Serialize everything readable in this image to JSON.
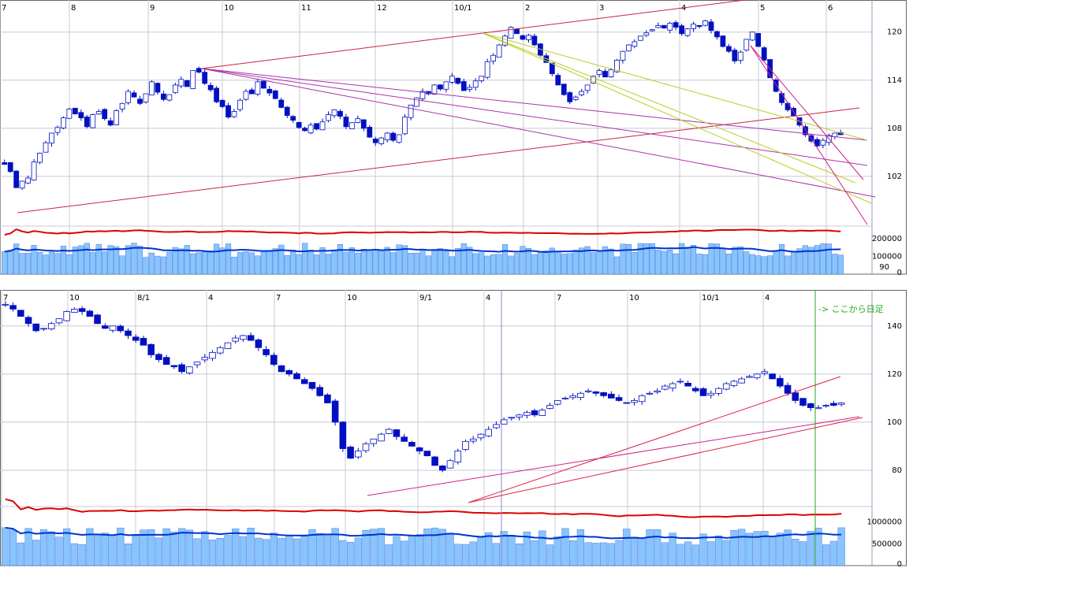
{
  "chart_data": [
    {
      "type": "candlestick",
      "name": "daily",
      "x_labels": [
        "7",
        "8",
        "9",
        "10",
        "11",
        "12",
        "10/1",
        "2",
        "3",
        "4",
        "5",
        "6"
      ],
      "price_ticks": [
        120,
        114,
        108,
        102
      ],
      "volume_ticks": [
        "200000",
        "100000",
        "0"
      ],
      "volume_extra_tick": "90",
      "price_range": [
        96,
        124
      ],
      "volume_range": [
        0,
        270000
      ],
      "colors": {
        "up": "#ffffff",
        "down": "#0010c0",
        "volume": "#88c4ff",
        "volume_line": "#0033cc",
        "volume_line2": "#dd0000",
        "grid": "#c8c8d8"
      },
      "closes": [
        103.5,
        102.6,
        100.6,
        101.4,
        101.8,
        103.8,
        104.9,
        106.2,
        107.4,
        108.1,
        109.3,
        110.4,
        109.8,
        109.3,
        108.2,
        109.7,
        110.1,
        109.2,
        108.4,
        110.2,
        111.1,
        112.6,
        111.9,
        111.1,
        112.3,
        113.8,
        112.5,
        111.6,
        112.2,
        113.4,
        114.1,
        113.2,
        115.2,
        115.0,
        113.6,
        112.8,
        111.3,
        110.7,
        109.4,
        110.1,
        111.5,
        112.6,
        112.3,
        113.8,
        113.0,
        112.4,
        111.7,
        110.6,
        109.6,
        109.0,
        108.1,
        107.7,
        108.4,
        107.9,
        108.8,
        109.7,
        110.3,
        109.5,
        108.2,
        108.7,
        109.2,
        108.0,
        106.9,
        106.2,
        106.8,
        107.4,
        106.5,
        107.2,
        109.4,
        110.9,
        111.8,
        112.6,
        112.3,
        113.4,
        112.9,
        113.8,
        114.5,
        113.6,
        112.7,
        113.1,
        113.9,
        114.5,
        116.3,
        117.1,
        118.4,
        119.5,
        120.6,
        119.8,
        119.1,
        119.6,
        118.4,
        117.1,
        116.2,
        114.8,
        113.4,
        112.2,
        111.3,
        111.9,
        112.6,
        113.4,
        114.5,
        115.2,
        114.4,
        115.3,
        116.5,
        117.6,
        118.4,
        118.8,
        119.5,
        119.9,
        120.3,
        120.8,
        120.5,
        121.1,
        120.6,
        119.8,
        120.4,
        121.0,
        120.7,
        121.4,
        120.2,
        119.4,
        118.2,
        117.6,
        116.4,
        117.5,
        119.1,
        120.0,
        118.2,
        116.5,
        114.3,
        112.6,
        111.2,
        110.3,
        109.6,
        108.4,
        107.2,
        106.4,
        105.8,
        106.5,
        107.1,
        107.4,
        107.2
      ]
    },
    {
      "type": "candlestick",
      "name": "weekly",
      "x_labels": [
        "7",
        "10",
        "8/1",
        "4",
        "7",
        "10",
        "9/1",
        "4",
        "7",
        "10",
        "10/1",
        "4"
      ],
      "price_ticks": [
        140,
        120,
        100,
        80
      ],
      "volume_ticks": [
        "1000000",
        "500000",
        "0"
      ],
      "price_range": [
        60,
        155
      ],
      "volume_range": [
        0,
        1200000
      ],
      "annotation": "-> ここから日足",
      "colors": {
        "up": "#ffffff",
        "down": "#0010c0",
        "volume": "#88c4ff",
        "volume_line": "#0033cc",
        "volume_line2": "#dd0000",
        "grid": "#c8c8d8",
        "marker": "#22aa22"
      },
      "closes": [
        149,
        147,
        144,
        141,
        138,
        139,
        141,
        143,
        146,
        147,
        146,
        144,
        141,
        139,
        140,
        138,
        136,
        134,
        132,
        128,
        126,
        124,
        123,
        121,
        123,
        125,
        127,
        129,
        131,
        133,
        135,
        136,
        134,
        131,
        128,
        124,
        121,
        120,
        118,
        116,
        114,
        111,
        108,
        100,
        89,
        85,
        88,
        91,
        93,
        95,
        97,
        94,
        92,
        90,
        88,
        86,
        82,
        80,
        84,
        88,
        92,
        93,
        95,
        97,
        99,
        101,
        102,
        103,
        104,
        103,
        105,
        107,
        109,
        110,
        111,
        112,
        113,
        112,
        111,
        110,
        109,
        108,
        109,
        111,
        112,
        113,
        115,
        116,
        117,
        115,
        113,
        111,
        112,
        114,
        116,
        117,
        118,
        119,
        120,
        121,
        118,
        115,
        112,
        109,
        107,
        106,
        106,
        107,
        107,
        108
      ]
    }
  ],
  "page": {
    "note_line": "-> ここから日足"
  }
}
